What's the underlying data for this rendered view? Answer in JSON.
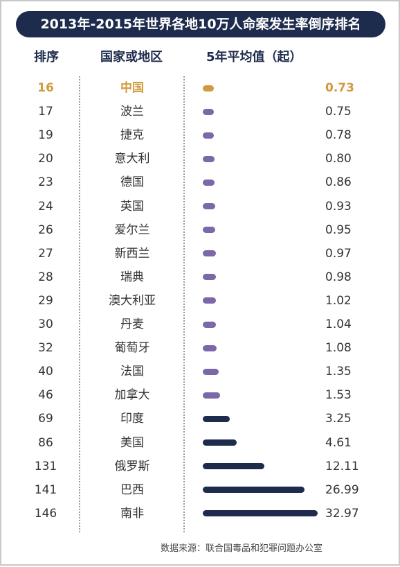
{
  "title": "2013年-2015年世界各地10万人命案发生率倒序排名",
  "headers": {
    "rank": "排序",
    "country": "国家或地区",
    "value": "5年平均值（起）"
  },
  "source": "数据来源：联合国毒品和犯罪问题办公室",
  "colors": {
    "highlight": "#d19a3e",
    "purple": "#7b68a8",
    "navy": "#1d2b4c"
  },
  "chart_data": {
    "type": "bar",
    "orientation": "horizontal",
    "title": "2013年-2015年世界各地10万人命案发生率倒序排名",
    "xlabel": "",
    "ylabel": "",
    "rows": [
      {
        "rank": "16",
        "country": "中国",
        "value": 0.73,
        "label": "0.73",
        "color": "#d19a3e",
        "highlight": true
      },
      {
        "rank": "17",
        "country": "波兰",
        "value": 0.75,
        "label": "0.75",
        "color": "#7b68a8"
      },
      {
        "rank": "19",
        "country": "捷克",
        "value": 0.78,
        "label": "0.78",
        "color": "#7b68a8"
      },
      {
        "rank": "20",
        "country": "意大利",
        "value": 0.8,
        "label": "0.80",
        "color": "#7b68a8"
      },
      {
        "rank": "23",
        "country": "德国",
        "value": 0.86,
        "label": "0.86",
        "color": "#7b68a8"
      },
      {
        "rank": "24",
        "country": "英国",
        "value": 0.93,
        "label": "0.93",
        "color": "#7b68a8"
      },
      {
        "rank": "26",
        "country": "爱尔兰",
        "value": 0.95,
        "label": "0.95",
        "color": "#7b68a8"
      },
      {
        "rank": "27",
        "country": "新西兰",
        "value": 0.97,
        "label": "0.97",
        "color": "#7b68a8"
      },
      {
        "rank": "28",
        "country": "瑞典",
        "value": 0.98,
        "label": "0.98",
        "color": "#7b68a8"
      },
      {
        "rank": "29",
        "country": "澳大利亚",
        "value": 1.02,
        "label": "1.02",
        "color": "#7b68a8"
      },
      {
        "rank": "30",
        "country": "丹麦",
        "value": 1.04,
        "label": "1.04",
        "color": "#7b68a8"
      },
      {
        "rank": "32",
        "country": "葡萄牙",
        "value": 1.08,
        "label": "1.08",
        "color": "#7b68a8"
      },
      {
        "rank": "40",
        "country": "法国",
        "value": 1.35,
        "label": "1.35",
        "color": "#7b68a8"
      },
      {
        "rank": "46",
        "country": "加拿大",
        "value": 1.53,
        "label": "1.53",
        "color": "#7b68a8"
      },
      {
        "rank": "69",
        "country": "印度",
        "value": 3.25,
        "label": "3.25",
        "color": "#1d2b4c"
      },
      {
        "rank": "86",
        "country": "美国",
        "value": 4.61,
        "label": "4.61",
        "color": "#1d2b4c"
      },
      {
        "rank": "131",
        "country": "俄罗斯",
        "value": 12.11,
        "label": "12.11",
        "color": "#1d2b4c"
      },
      {
        "rank": "141",
        "country": "巴西",
        "value": 26.99,
        "label": "26.99",
        "color": "#1d2b4c"
      },
      {
        "rank": "146",
        "country": "南非",
        "value": 32.97,
        "label": "32.97",
        "color": "#1d2b4c"
      }
    ]
  }
}
